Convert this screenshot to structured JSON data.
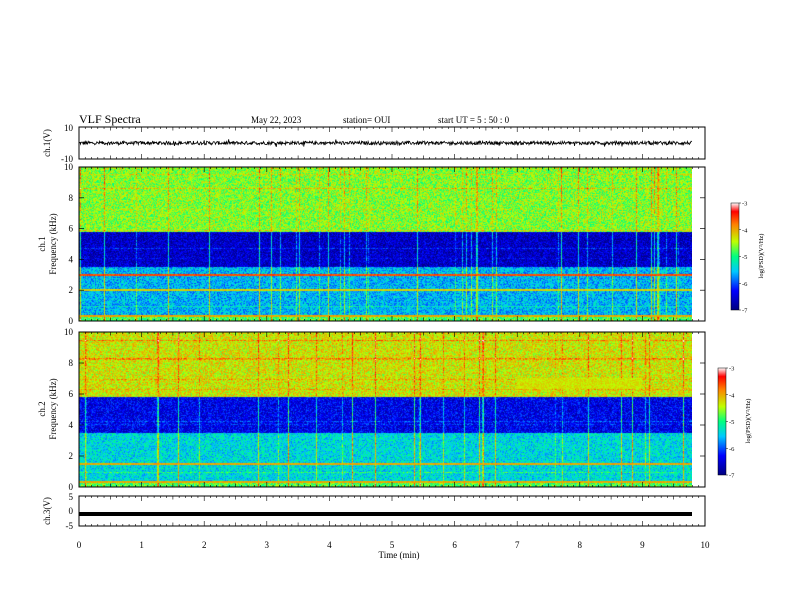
{
  "header": {
    "title": "VLF Spectra",
    "date": "May 22, 2023",
    "station": "station= OUI",
    "start": "start  UT =   5  : 50 : 0"
  },
  "colors": {
    "trace": "#000000",
    "frame": "#000000",
    "background": "#ffffff"
  },
  "chart_data": [
    {
      "id": "ch1-waveform",
      "type": "line",
      "ylabel": "ch.1(V)",
      "ylim": [
        -10,
        10
      ],
      "yticks": [
        "10",
        "-10"
      ],
      "xlim": [
        0,
        10
      ],
      "series": [
        {
          "values_summary": "noisy signal centred near 0 V, amplitude about ±1 V, spikes up to ±2.5 V"
        }
      ]
    },
    {
      "id": "ch1-spectrogram",
      "type": "heatmap",
      "ylabel": "Frequency (kHz)",
      "channel_label": "ch.1",
      "ylim": [
        0,
        10
      ],
      "yticks": [
        "0",
        "2",
        "4",
        "6",
        "8",
        "10"
      ],
      "xlim": [
        0,
        9.8
      ],
      "colorbar": {
        "label": "log(PSD)(V²/Hz)",
        "range": [
          -7,
          -3
        ],
        "ticks": [
          "-3",
          "-4",
          "-5",
          "-6",
          "-7"
        ]
      },
      "features": [
        {
          "band": [
            0.3,
            3.5
          ],
          "level": -5.6
        },
        {
          "band": [
            3.5,
            5.8
          ],
          "level": -6.6
        },
        {
          "band": [
            5.8,
            10
          ],
          "level": -4.6
        },
        {
          "line_khz": 3.0,
          "level": -3.6
        },
        {
          "line_khz": 2.0,
          "level": -4.2
        },
        {
          "line_khz": 0.3,
          "level": -4.0
        }
      ]
    },
    {
      "id": "ch2-spectrogram",
      "type": "heatmap",
      "ylabel": "Frequency (kHz)",
      "channel_label": "ch.2",
      "ylim": [
        0,
        10
      ],
      "yticks": [
        "0",
        "2",
        "4",
        "6",
        "8",
        "10"
      ],
      "xlim": [
        0,
        9.8
      ],
      "colorbar": {
        "label": "log(PSD)(V²/Hz)",
        "range": [
          -7,
          -3
        ],
        "ticks": [
          "-3",
          "-4",
          "-5",
          "-6",
          "-7"
        ]
      },
      "features": [
        {
          "band": [
            0.3,
            3.5
          ],
          "level": -5.4
        },
        {
          "band": [
            3.5,
            5.8
          ],
          "level": -6.4
        },
        {
          "band": [
            5.8,
            10
          ],
          "level": -4.3
        },
        {
          "line_khz": 1.5,
          "level": -4.0
        },
        {
          "line_khz": 0.3,
          "level": -4.0
        },
        {
          "region": {
            "t": [
              7.0,
              9.0
            ],
            "f": [
              6.3,
              7.0
            ]
          },
          "level": -4.3
        }
      ]
    },
    {
      "id": "ch3-waveform",
      "type": "line",
      "ylabel": "ch.3(V)",
      "ylim": [
        -5,
        5
      ],
      "yticks": [
        "5",
        "0",
        "-5"
      ],
      "xlim": [
        0,
        10
      ],
      "series": [
        {
          "values_summary": "constant near -1 V"
        }
      ]
    }
  ],
  "x_axis": {
    "label": "Time  (min)",
    "ticks": [
      "0",
      "1",
      "2",
      "3",
      "4",
      "5",
      "6",
      "7",
      "8",
      "9",
      "10"
    ]
  }
}
